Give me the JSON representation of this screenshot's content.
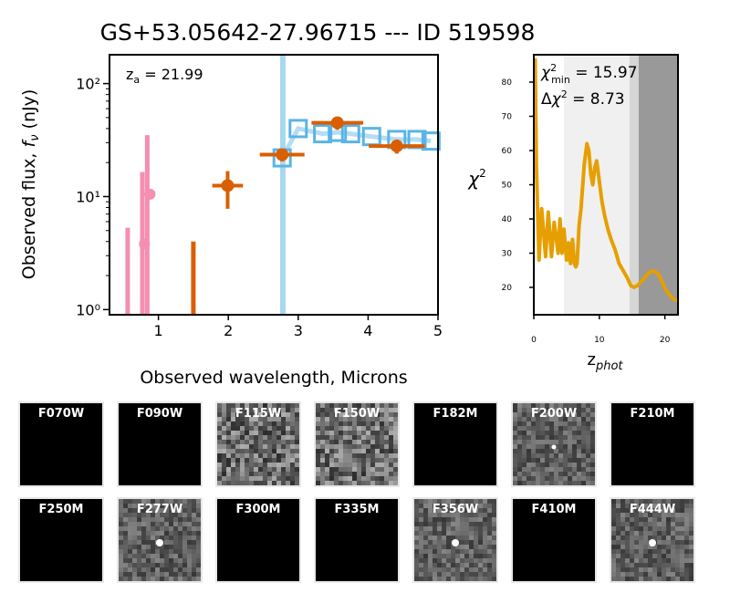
{
  "title": "GS+53.05642-27.96715 --- ID 519598",
  "chart_data": [
    {
      "type": "scatter",
      "name": "sed",
      "title": "",
      "annotation": "z_a = 21.99",
      "xlabel": "Observed wavelength, Microns",
      "ylabel": "Observed flux, f_ν (nJy)",
      "xlim": [
        0.3,
        5.0
      ],
      "ylim": [
        0.9,
        180
      ],
      "yscale": "log",
      "xticks": [
        1,
        2,
        3,
        4,
        5
      ],
      "yticks": [
        {
          "value": 1,
          "label": "10⁰"
        },
        {
          "value": 10,
          "label": "10¹"
        },
        {
          "value": 100,
          "label": "10²"
        }
      ],
      "vline": {
        "x": 2.78,
        "color": "#a8d8f0"
      },
      "upper_limits": [
        {
          "x": 0.56,
          "lo": 0.9,
          "hi": 5.3,
          "color": "#f48fb1"
        },
        {
          "x": 0.77,
          "lo": 0.9,
          "hi": 16.5,
          "color": "#f48fb1"
        },
        {
          "x": 0.84,
          "lo": 0.9,
          "hi": 35,
          "color": "#f48fb1"
        },
        {
          "x": 1.5,
          "lo": 0.9,
          "hi": 4.0,
          "color": "#d95f02"
        }
      ],
      "model_points": [
        {
          "x": 0.8,
          "y": 3.8,
          "color": "#f48fb1"
        },
        {
          "x": 0.88,
          "y": 10.5,
          "color": "#f48fb1"
        }
      ],
      "detections": [
        {
          "x": 1.99,
          "y": 12.5,
          "xerr": 0.22,
          "ylo": 7.8,
          "yhi": 16.8,
          "color": "#d95f02"
        },
        {
          "x": 2.77,
          "y": 23.5,
          "xerr": 0.32,
          "ylo": 20.5,
          "yhi": 26.5,
          "color": "#d95f02"
        },
        {
          "x": 3.56,
          "y": 45,
          "xerr": 0.37,
          "ylo": 39,
          "yhi": 51,
          "color": "#d95f02"
        },
        {
          "x": 4.41,
          "y": 28,
          "xerr": 0.4,
          "ylo": 24,
          "yhi": 32,
          "color": "#d95f02"
        }
      ],
      "model_sed": {
        "x": [
          2.77,
          3.0,
          3.35,
          3.56,
          3.75,
          4.05,
          4.41,
          4.7,
          4.9
        ],
        "y": [
          22,
          40,
          36,
          37,
          36,
          34,
          32,
          32,
          31
        ],
        "color": "#5ab4e5"
      }
    },
    {
      "type": "line",
      "name": "chi2",
      "xlabel": "z_phot",
      "ylabel": "χ²",
      "xlim": [
        0,
        22
      ],
      "ylim": [
        12,
        88
      ],
      "xticks": [
        0,
        10,
        20
      ],
      "yticks": [
        20,
        30,
        40,
        50,
        60,
        70,
        80
      ],
      "chi2_min_label": "χ²_min = 15.97",
      "delta_chi2_label": "Δχ² = 8.73",
      "shaded_regions": [
        {
          "x0": 4.6,
          "x1": 14.6,
          "color": "#f0f0f0"
        },
        {
          "x0": 14.6,
          "x1": 16.0,
          "color": "#d6d6d6"
        },
        {
          "x0": 16.0,
          "x1": 22,
          "color": "#999999"
        }
      ],
      "curve": {
        "color": "#e69f00",
        "x": [
          0.2,
          0.4,
          0.8,
          1.2,
          1.5,
          1.8,
          2.2,
          2.7,
          3.1,
          3.4,
          3.7,
          4.0,
          4.3,
          4.6,
          5.0,
          5.3,
          5.6,
          5.9,
          6.2,
          6.4,
          6.6,
          6.9,
          7.2,
          7.7,
          8.1,
          8.4,
          8.7,
          9.0,
          9.3,
          9.6,
          10.0,
          10.4,
          10.8,
          11.3,
          11.8,
          12.4,
          13.0,
          13.6,
          14.2,
          14.8,
          15.3,
          15.8,
          16.3,
          16.8,
          17.4,
          18.0,
          18.6,
          19.1,
          19.6,
          20.1,
          20.6,
          21.1,
          21.6,
          22.0
        ],
        "y": [
          87,
          55,
          28,
          43,
          36,
          29,
          42,
          29,
          39,
          35,
          30,
          40,
          30,
          37,
          28,
          33,
          27,
          34,
          27,
          26,
          27,
          38,
          43,
          56,
          62,
          60,
          53,
          50,
          55,
          57,
          51,
          45,
          41,
          37,
          34,
          31,
          27,
          25,
          23,
          20.5,
          20,
          20.5,
          21.5,
          22.5,
          24,
          24.8,
          24.5,
          23.5,
          21.5,
          19.5,
          18,
          17,
          16.3,
          16
        ]
      }
    }
  ],
  "filters": [
    {
      "label": "F070W",
      "state": "empty"
    },
    {
      "label": "F090W",
      "state": "empty"
    },
    {
      "label": "F115W",
      "state": "noise"
    },
    {
      "label": "F150W",
      "state": "noise"
    },
    {
      "label": "F182M",
      "state": "empty"
    },
    {
      "label": "F200W",
      "state": "faint"
    },
    {
      "label": "F210M",
      "state": "empty"
    },
    {
      "label": "F250M",
      "state": "empty"
    },
    {
      "label": "F277W",
      "state": "source"
    },
    {
      "label": "F300M",
      "state": "empty"
    },
    {
      "label": "F335M",
      "state": "empty"
    },
    {
      "label": "F356W",
      "state": "source"
    },
    {
      "label": "F410M",
      "state": "empty"
    },
    {
      "label": "F444W",
      "state": "source"
    }
  ]
}
